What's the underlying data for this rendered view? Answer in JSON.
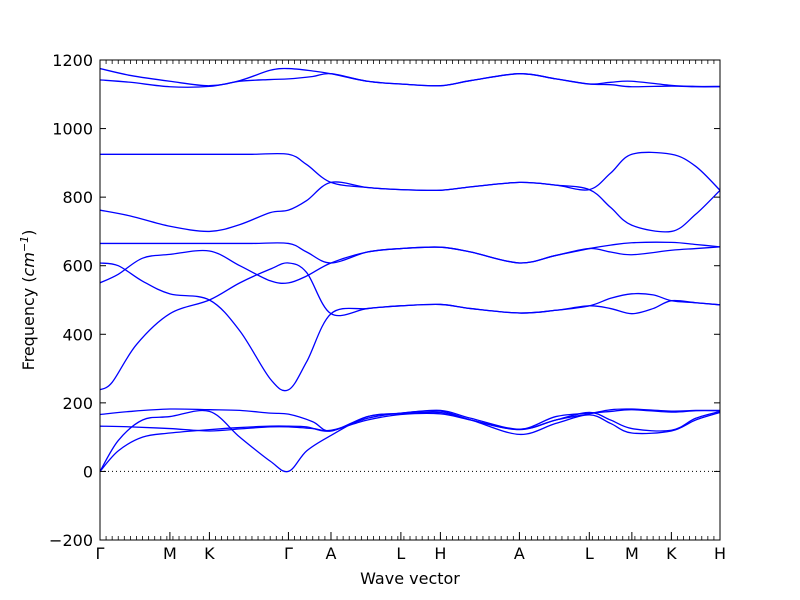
{
  "chart_data": {
    "type": "line",
    "title": "",
    "xlabel": "Wave vector",
    "ylabel": "Frequency (cm⁻¹)",
    "ylabel_parts": {
      "prefix": "Frequency (",
      "unit_base": "cm",
      "unit_exp": "−1",
      "suffix": ")"
    },
    "ylim": [
      -200,
      1200
    ],
    "yticks": [
      -200,
      0,
      200,
      400,
      600,
      800,
      1000,
      1200
    ],
    "xlim": [
      0,
      10.2
    ],
    "high_symmetry_points": [
      {
        "label": "Γ",
        "x": 0.0
      },
      {
        "label": "M",
        "x": 1.15
      },
      {
        "label": "K",
        "x": 1.8
      },
      {
        "label": "Γ",
        "x": 3.1
      },
      {
        "label": "A",
        "x": 3.8
      },
      {
        "label": "L",
        "x": 4.95
      },
      {
        "label": "H",
        "x": 5.6
      },
      {
        "label": "A",
        "x": 6.9
      },
      {
        "label": "L",
        "x": 8.05
      },
      {
        "label": "M",
        "x": 8.75
      },
      {
        "label": "K",
        "x": 9.4
      },
      {
        "label": "H",
        "x": 10.2
      }
    ],
    "zero_line": true,
    "grid": false,
    "line_color": "#0000ff",
    "series": [
      {
        "points": [
          [
            0,
            0
          ],
          [
            0.3,
            90
          ],
          [
            0.7,
            150
          ],
          [
            1.15,
            160
          ],
          [
            1.8,
            175
          ],
          [
            2.3,
            100
          ],
          [
            2.8,
            30
          ],
          [
            3.1,
            0
          ],
          [
            3.4,
            60
          ],
          [
            3.8,
            105
          ],
          [
            4.4,
            160
          ],
          [
            4.95,
            168
          ],
          [
            5.6,
            172
          ],
          [
            6.1,
            150
          ],
          [
            6.9,
            108
          ],
          [
            7.5,
            140
          ],
          [
            8.05,
            165
          ],
          [
            8.4,
            140
          ],
          [
            8.75,
            112
          ],
          [
            9.4,
            118
          ],
          [
            9.8,
            150
          ],
          [
            10.2,
            172
          ]
        ]
      },
      {
        "points": [
          [
            0,
            0
          ],
          [
            0.3,
            60
          ],
          [
            0.7,
            100
          ],
          [
            1.15,
            112
          ],
          [
            1.8,
            122
          ],
          [
            2.3,
            128
          ],
          [
            2.8,
            132
          ],
          [
            3.1,
            132
          ],
          [
            3.4,
            130
          ],
          [
            3.8,
            118
          ],
          [
            4.4,
            155
          ],
          [
            4.95,
            170
          ],
          [
            5.6,
            176
          ],
          [
            6.1,
            150
          ],
          [
            6.9,
            122
          ],
          [
            7.5,
            150
          ],
          [
            8.05,
            172
          ],
          [
            8.4,
            150
          ],
          [
            8.75,
            125
          ],
          [
            9.4,
            120
          ],
          [
            9.8,
            155
          ],
          [
            10.2,
            175
          ]
        ]
      },
      {
        "points": [
          [
            0,
            132
          ],
          [
            0.5,
            130
          ],
          [
            1.15,
            125
          ],
          [
            1.8,
            118
          ],
          [
            2.3,
            124
          ],
          [
            2.8,
            130
          ],
          [
            3.1,
            130
          ],
          [
            3.5,
            125
          ],
          [
            3.8,
            120
          ],
          [
            4.4,
            150
          ],
          [
            4.95,
            166
          ],
          [
            5.6,
            168
          ],
          [
            6.1,
            150
          ],
          [
            6.9,
            123
          ],
          [
            7.5,
            160
          ],
          [
            8.05,
            170
          ],
          [
            8.4,
            175
          ],
          [
            8.75,
            180
          ],
          [
            9.4,
            173
          ],
          [
            9.8,
            177
          ],
          [
            10.2,
            177
          ]
        ]
      },
      {
        "points": [
          [
            0,
            166
          ],
          [
            0.5,
            175
          ],
          [
            1.15,
            182
          ],
          [
            1.8,
            180
          ],
          [
            2.3,
            178
          ],
          [
            2.8,
            170
          ],
          [
            3.1,
            167
          ],
          [
            3.5,
            145
          ],
          [
            3.8,
            118
          ],
          [
            4.4,
            160
          ],
          [
            4.95,
            170
          ],
          [
            5.6,
            178
          ],
          [
            6.1,
            155
          ],
          [
            6.9,
            123
          ],
          [
            7.5,
            150
          ],
          [
            8.05,
            168
          ],
          [
            8.4,
            180
          ],
          [
            8.75,
            182
          ],
          [
            9.4,
            176
          ],
          [
            9.8,
            178
          ],
          [
            10.2,
            178
          ]
        ]
      },
      {
        "points": [
          [
            0,
            238
          ],
          [
            0.2,
            260
          ],
          [
            0.6,
            370
          ],
          [
            1.15,
            460
          ],
          [
            1.8,
            500
          ],
          [
            2.3,
            550
          ],
          [
            2.8,
            590
          ],
          [
            3.1,
            608
          ],
          [
            3.4,
            580
          ],
          [
            3.8,
            460
          ],
          [
            4.4,
            475
          ],
          [
            4.95,
            483
          ],
          [
            5.6,
            487
          ],
          [
            6.1,
            475
          ],
          [
            6.9,
            462
          ],
          [
            7.5,
            470
          ],
          [
            8.05,
            483
          ],
          [
            8.4,
            475
          ],
          [
            8.75,
            460
          ],
          [
            9.1,
            475
          ],
          [
            9.4,
            498
          ],
          [
            9.8,
            492
          ],
          [
            10.2,
            486
          ]
        ]
      },
      {
        "points": [
          [
            0,
            608
          ],
          [
            0.3,
            600
          ],
          [
            0.7,
            555
          ],
          [
            1.15,
            518
          ],
          [
            1.8,
            500
          ],
          [
            2.3,
            410
          ],
          [
            2.8,
            270
          ],
          [
            3.1,
            238
          ],
          [
            3.4,
            320
          ],
          [
            3.8,
            460
          ],
          [
            4.4,
            475
          ],
          [
            4.95,
            483
          ],
          [
            5.6,
            487
          ],
          [
            6.1,
            475
          ],
          [
            6.9,
            462
          ],
          [
            7.5,
            470
          ],
          [
            8.05,
            483
          ],
          [
            8.4,
            505
          ],
          [
            8.75,
            518
          ],
          [
            9.1,
            515
          ],
          [
            9.4,
            498
          ],
          [
            9.8,
            492
          ],
          [
            10.2,
            486
          ]
        ]
      },
      {
        "points": [
          [
            0,
            550
          ],
          [
            0.3,
            575
          ],
          [
            0.7,
            622
          ],
          [
            1.15,
            633
          ],
          [
            1.8,
            643
          ],
          [
            2.3,
            600
          ],
          [
            2.8,
            556
          ],
          [
            3.1,
            550
          ],
          [
            3.4,
            570
          ],
          [
            3.8,
            608
          ],
          [
            4.4,
            640
          ],
          [
            4.95,
            650
          ],
          [
            5.6,
            654
          ],
          [
            6.1,
            640
          ],
          [
            6.9,
            608
          ],
          [
            7.5,
            630
          ],
          [
            8.05,
            650
          ],
          [
            8.4,
            640
          ],
          [
            8.75,
            632
          ],
          [
            9.4,
            645
          ],
          [
            9.8,
            650
          ],
          [
            10.2,
            655
          ]
        ]
      },
      {
        "points": [
          [
            0,
            665
          ],
          [
            1.15,
            665
          ],
          [
            1.8,
            665
          ],
          [
            2.5,
            665
          ],
          [
            3.1,
            665
          ],
          [
            3.4,
            640
          ],
          [
            3.8,
            608
          ],
          [
            4.4,
            640
          ],
          [
            4.95,
            650
          ],
          [
            5.6,
            654
          ],
          [
            6.1,
            640
          ],
          [
            6.9,
            608
          ],
          [
            7.5,
            630
          ],
          [
            8.05,
            650
          ],
          [
            8.4,
            660
          ],
          [
            8.75,
            667
          ],
          [
            9.4,
            668
          ],
          [
            9.8,
            662
          ],
          [
            10.2,
            655
          ]
        ]
      },
      {
        "points": [
          [
            0,
            762
          ],
          [
            0.5,
            745
          ],
          [
            1.15,
            715
          ],
          [
            1.8,
            700
          ],
          [
            2.3,
            720
          ],
          [
            2.8,
            755
          ],
          [
            3.1,
            762
          ],
          [
            3.4,
            790
          ],
          [
            3.8,
            843
          ],
          [
            4.4,
            828
          ],
          [
            4.95,
            822
          ],
          [
            5.6,
            820
          ],
          [
            6.1,
            830
          ],
          [
            6.9,
            843
          ],
          [
            7.5,
            835
          ],
          [
            8.05,
            822
          ],
          [
            8.4,
            770
          ],
          [
            8.75,
            718
          ],
          [
            9.4,
            700
          ],
          [
            9.8,
            750
          ],
          [
            10.2,
            820
          ]
        ]
      },
      {
        "points": [
          [
            0,
            925
          ],
          [
            1.15,
            925
          ],
          [
            1.8,
            925
          ],
          [
            2.5,
            925
          ],
          [
            3.1,
            925
          ],
          [
            3.4,
            895
          ],
          [
            3.8,
            843
          ],
          [
            4.4,
            828
          ],
          [
            4.95,
            822
          ],
          [
            5.6,
            820
          ],
          [
            6.1,
            830
          ],
          [
            6.9,
            843
          ],
          [
            7.5,
            835
          ],
          [
            8.05,
            822
          ],
          [
            8.4,
            870
          ],
          [
            8.75,
            925
          ],
          [
            9.4,
            925
          ],
          [
            9.8,
            890
          ],
          [
            10.2,
            820
          ]
        ]
      },
      {
        "points": [
          [
            0,
            1142
          ],
          [
            0.5,
            1135
          ],
          [
            1.15,
            1122
          ],
          [
            1.8,
            1123
          ],
          [
            2.3,
            1138
          ],
          [
            2.8,
            1143
          ],
          [
            3.1,
            1145
          ],
          [
            3.5,
            1152
          ],
          [
            3.8,
            1160
          ],
          [
            4.4,
            1138
          ],
          [
            4.95,
            1130
          ],
          [
            5.6,
            1125
          ],
          [
            6.1,
            1140
          ],
          [
            6.9,
            1160
          ],
          [
            7.5,
            1145
          ],
          [
            8.05,
            1130
          ],
          [
            8.4,
            1128
          ],
          [
            8.75,
            1122
          ],
          [
            9.4,
            1124
          ],
          [
            9.8,
            1122
          ],
          [
            10.2,
            1122
          ]
        ]
      },
      {
        "points": [
          [
            0,
            1175
          ],
          [
            0.5,
            1155
          ],
          [
            1.15,
            1138
          ],
          [
            1.8,
            1125
          ],
          [
            2.3,
            1140
          ],
          [
            2.8,
            1170
          ],
          [
            3.1,
            1175
          ],
          [
            3.5,
            1168
          ],
          [
            3.8,
            1160
          ],
          [
            4.4,
            1138
          ],
          [
            4.95,
            1130
          ],
          [
            5.6,
            1125
          ],
          [
            6.1,
            1140
          ],
          [
            6.9,
            1160
          ],
          [
            7.5,
            1145
          ],
          [
            8.05,
            1130
          ],
          [
            8.4,
            1135
          ],
          [
            8.75,
            1138
          ],
          [
            9.4,
            1126
          ],
          [
            9.8,
            1123
          ],
          [
            10.2,
            1123
          ]
        ]
      }
    ]
  }
}
